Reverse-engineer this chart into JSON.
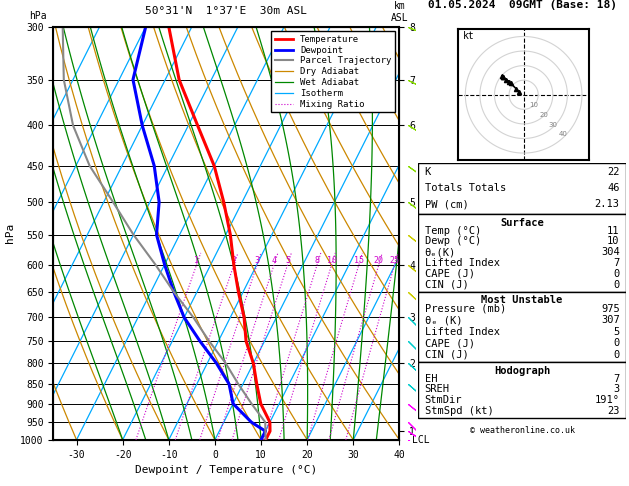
{
  "title_left": "50°31'N  1°37'E  30m ASL",
  "title_right": "01.05.2024  09GMT (Base: 18)",
  "xlabel": "Dewpoint / Temperature (°C)",
  "ylabel_left": "hPa",
  "pressure_levels": [
    300,
    350,
    400,
    450,
    500,
    550,
    600,
    650,
    700,
    750,
    800,
    850,
    900,
    950,
    1000
  ],
  "x_range": [
    -35,
    40
  ],
  "skew": 45,
  "pmin": 300,
  "pmax": 1000,
  "temp_color": "#ff0000",
  "dewp_color": "#0000ff",
  "parcel_color": "#888888",
  "dry_adiabat_color": "#cc8800",
  "wet_adiabat_color": "#008800",
  "isotherm_color": "#00aaff",
  "mixing_ratio_color": "#cc00cc",
  "km_labels": [
    "1",
    "2",
    "3",
    "4",
    "5",
    "6",
    "7",
    "8"
  ],
  "km_pressures": [
    975,
    800,
    700,
    600,
    500,
    400,
    350,
    300
  ],
  "mixing_ratios": [
    1,
    2,
    3,
    4,
    5,
    8,
    10,
    15,
    20,
    25
  ],
  "stats": {
    "K": "22",
    "Totals Totals": "46",
    "PW (cm)": "2.13",
    "Surface_Temp": "11",
    "Surface_Dewp": "10",
    "Surface_theta_e": "304",
    "Surface_LI": "7",
    "Surface_CAPE": "0",
    "Surface_CIN": "0",
    "MU_Pressure": "975",
    "MU_theta_e": "307",
    "MU_LI": "5",
    "MU_CAPE": "0",
    "MU_CIN": "0",
    "Hodo_EH": "7",
    "Hodo_SREH": "3",
    "Hodo_StmDir": "191°",
    "Hodo_StmSpd": "23"
  },
  "temp_profile": {
    "pressure": [
      1000,
      975,
      950,
      900,
      850,
      800,
      750,
      700,
      650,
      600,
      550,
      500,
      450,
      400,
      350,
      300
    ],
    "temp": [
      11,
      11,
      10,
      6,
      3,
      0,
      -4,
      -7,
      -11,
      -15,
      -19,
      -24,
      -30,
      -38,
      -47,
      -55
    ]
  },
  "dewp_profile": {
    "pressure": [
      1000,
      975,
      950,
      900,
      850,
      800,
      750,
      700,
      650,
      600,
      550,
      500,
      450,
      400,
      350,
      300
    ],
    "dewp": [
      10,
      10,
      6,
      0,
      -3,
      -8,
      -14,
      -20,
      -25,
      -30,
      -35,
      -38,
      -43,
      -50,
      -57,
      -60
    ]
  },
  "parcel_profile": {
    "pressure": [
      1000,
      975,
      950,
      900,
      850,
      800,
      750,
      700,
      650,
      600,
      550,
      500,
      450,
      400,
      350,
      300
    ],
    "temp": [
      11,
      10,
      9,
      4,
      -1,
      -6,
      -12,
      -18,
      -25,
      -32,
      -40,
      -48,
      -57,
      -65,
      -72,
      -78
    ]
  },
  "wind_barbs_pressure": [
    1000,
    975,
    950,
    900,
    850,
    800,
    750,
    700,
    650,
    600,
    550,
    500,
    450,
    400,
    350,
    300
  ],
  "wind_barbs_u": [
    -3,
    -3,
    -3,
    -5,
    -7,
    -9,
    -10,
    -12,
    -14,
    -15,
    -14,
    -12,
    -10,
    -8,
    -6,
    -5
  ],
  "wind_barbs_v": [
    2,
    2,
    3,
    4,
    6,
    8,
    10,
    12,
    13,
    12,
    11,
    9,
    7,
    5,
    3,
    2
  ],
  "hodo_u": [
    -3,
    -5,
    -9,
    -12,
    -14,
    -15,
    -14,
    -10
  ],
  "hodo_v": [
    2,
    4,
    8,
    10,
    12,
    13,
    12,
    9
  ]
}
